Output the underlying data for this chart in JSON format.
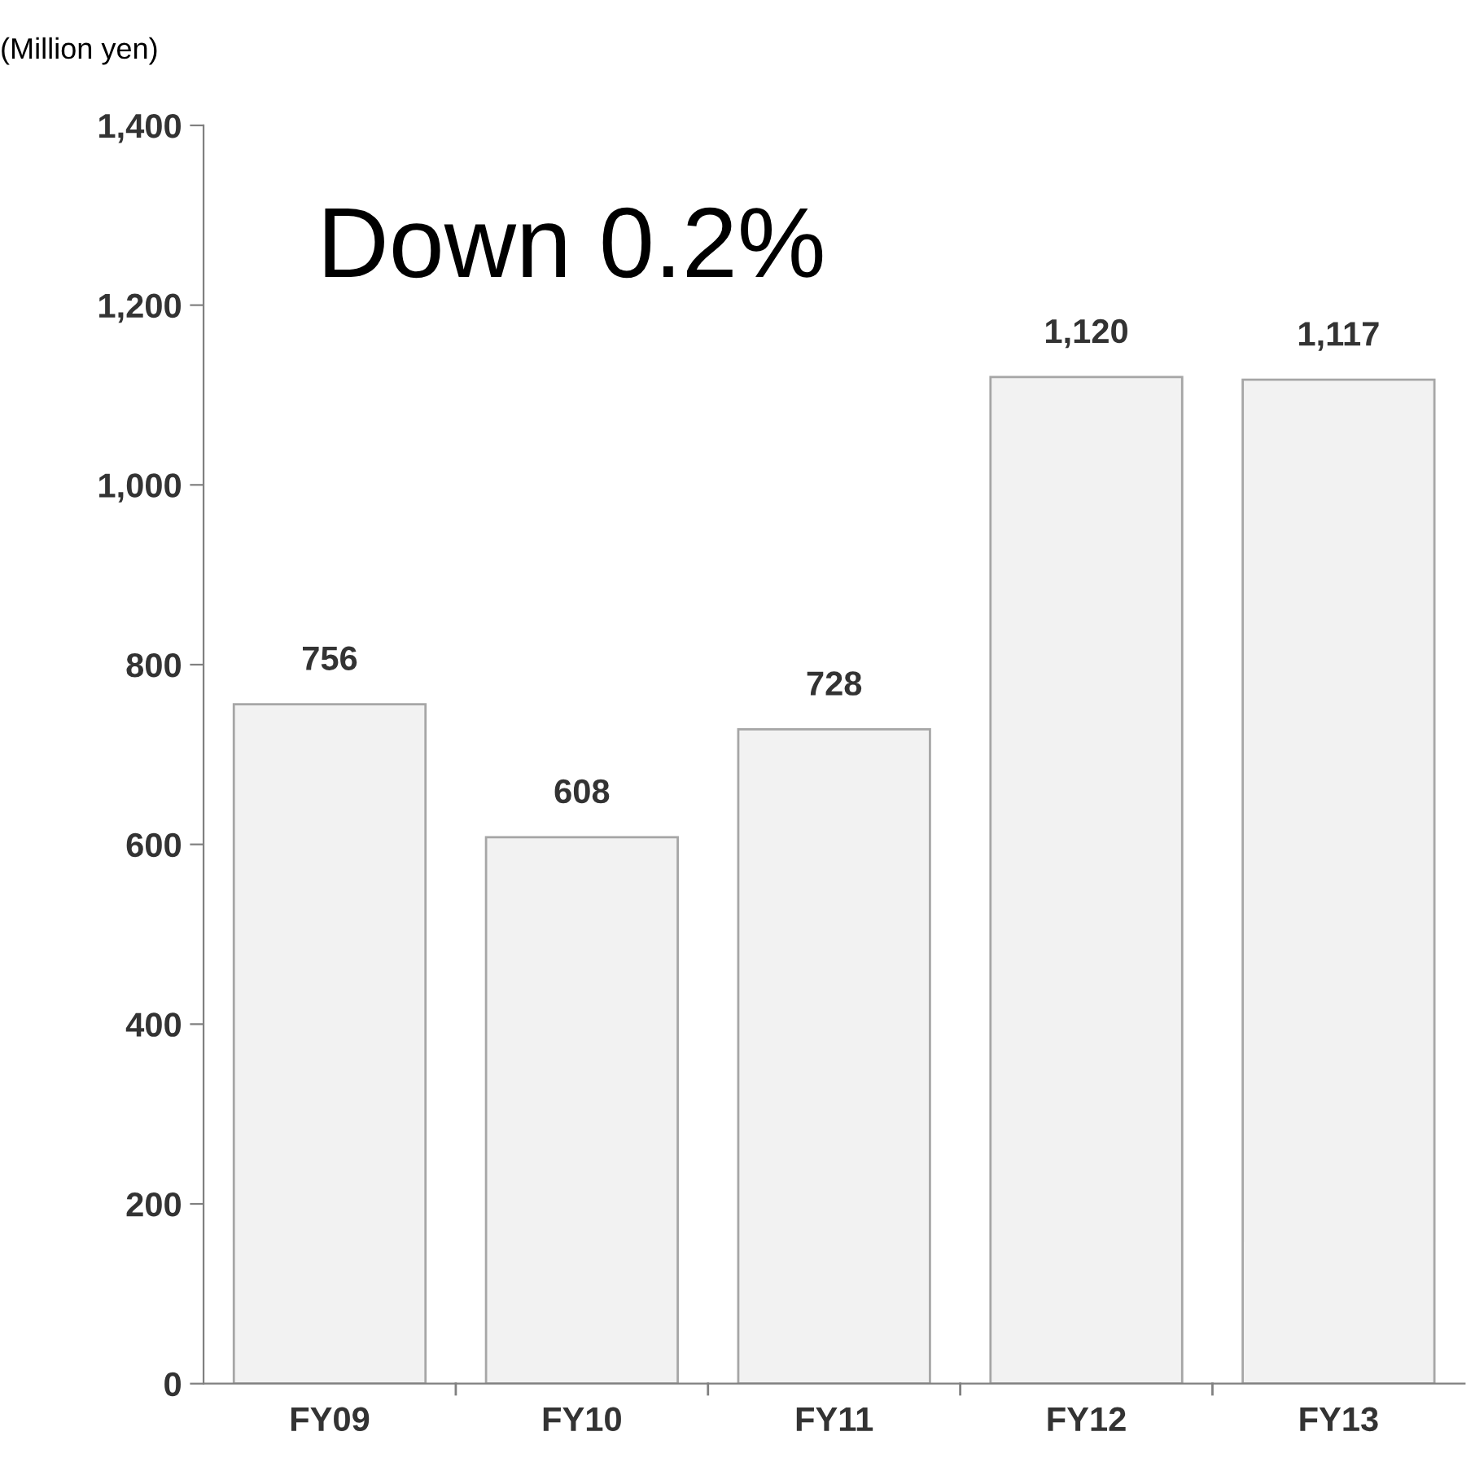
{
  "chart_data": {
    "type": "bar",
    "ylabel": "(Million yen)",
    "annotations": [
      "Down 0.2%"
    ],
    "categories": [
      "FY09",
      "FY10",
      "FY11",
      "FY12",
      "FY13"
    ],
    "values": [
      756,
      608,
      728,
      1120,
      1117
    ],
    "value_labels": [
      "756",
      "608",
      "728",
      "1,120",
      "1,117"
    ],
    "color": "#f2f2f2",
    "ylim": [
      0,
      1400
    ],
    "yticks": [
      0,
      200,
      400,
      600,
      800,
      {
        "value": 1000,
        "label": "1,000"
      },
      {
        "value": 1200,
        "label": "1,200"
      },
      {
        "value": 1400,
        "label": "1,400"
      }
    ],
    "grid": false,
    "legend": false
  }
}
